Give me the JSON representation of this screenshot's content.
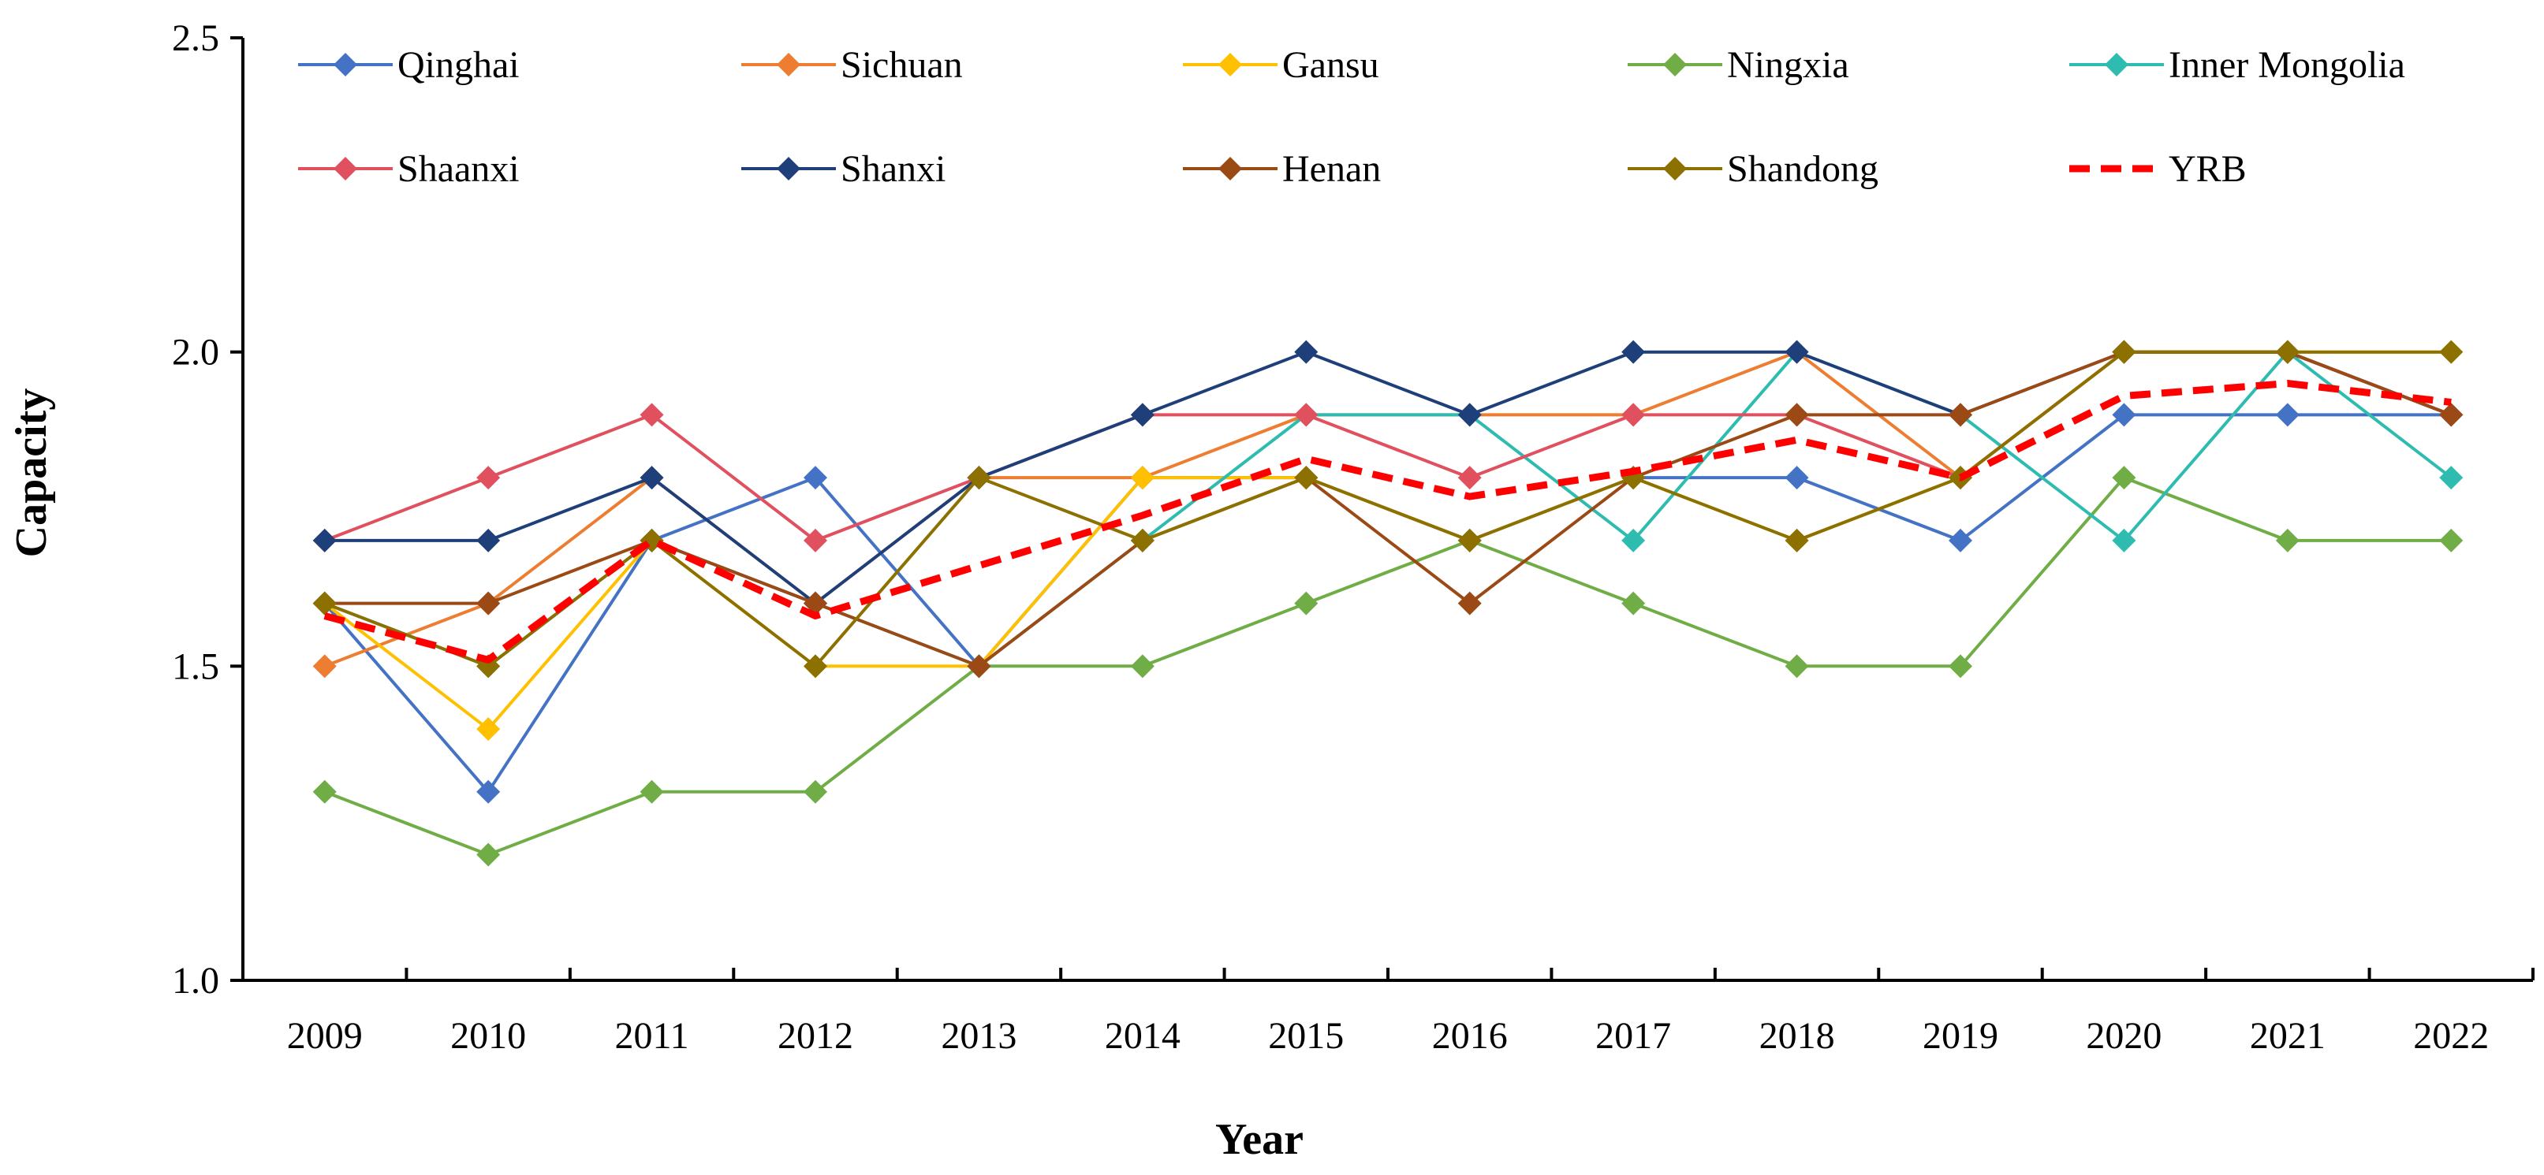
{
  "chart_data": {
    "type": "line",
    "title": "",
    "xlabel": "Year",
    "ylabel": "Capacity",
    "ylim": [
      1.0,
      2.5
    ],
    "yticks": [
      "1.0",
      "1.5",
      "2.0",
      "2.5"
    ],
    "grid": false,
    "legend_position": "top",
    "categories": [
      "2009",
      "2010",
      "2011",
      "2012",
      "2013",
      "2014",
      "2015",
      "2016",
      "2017",
      "2018",
      "2019",
      "2020",
      "2021",
      "2022"
    ],
    "series": [
      {
        "name": "Qinghai",
        "color": "#4472C4",
        "style": "solid",
        "marker": "diamond",
        "values": [
          1.6,
          1.3,
          1.7,
          1.8,
          1.5,
          1.8,
          1.8,
          1.7,
          1.8,
          1.8,
          1.7,
          1.9,
          1.9,
          1.9
        ]
      },
      {
        "name": "Sichuan",
        "color": "#ED7D31",
        "style": "solid",
        "marker": "diamond",
        "values": [
          1.5,
          1.6,
          1.8,
          1.6,
          1.8,
          1.8,
          1.9,
          1.9,
          1.9,
          2.0,
          1.8,
          2.0,
          2.0,
          1.9
        ]
      },
      {
        "name": "Gansu",
        "color": "#FFC000",
        "style": "solid",
        "marker": "diamond",
        "values": [
          1.6,
          1.4,
          1.7,
          1.5,
          1.5,
          1.8,
          1.8,
          1.7,
          1.8,
          1.7,
          1.8,
          2.0,
          2.0,
          2.0
        ]
      },
      {
        "name": "Ningxia",
        "color": "#70AD47",
        "style": "solid",
        "marker": "diamond",
        "values": [
          1.3,
          1.2,
          1.3,
          1.3,
          1.5,
          1.5,
          1.6,
          1.7,
          1.6,
          1.5,
          1.5,
          1.8,
          1.7,
          1.7
        ]
      },
      {
        "name": "Inner Mongolia",
        "color": "#2EBCB0",
        "style": "solid",
        "marker": "diamond",
        "values": [
          1.6,
          1.5,
          1.7,
          1.6,
          1.5,
          1.7,
          1.9,
          1.9,
          1.7,
          2.0,
          1.9,
          1.7,
          2.0,
          1.8
        ]
      },
      {
        "name": "Shaanxi",
        "color": "#E0505F",
        "style": "solid",
        "marker": "diamond",
        "values": [
          1.7,
          1.8,
          1.9,
          1.7,
          1.8,
          1.9,
          1.9,
          1.8,
          1.9,
          1.9,
          1.8,
          2.0,
          2.0,
          1.9
        ]
      },
      {
        "name": "Shanxi",
        "color": "#1F3F7A",
        "style": "solid",
        "marker": "diamond",
        "values": [
          1.7,
          1.7,
          1.8,
          1.6,
          1.8,
          1.9,
          2.0,
          1.9,
          2.0,
          2.0,
          1.9,
          2.0,
          2.0,
          1.9
        ]
      },
      {
        "name": "Henan",
        "color": "#9C4A15",
        "style": "solid",
        "marker": "diamond",
        "values": [
          1.6,
          1.6,
          1.7,
          1.6,
          1.5,
          1.7,
          1.8,
          1.6,
          1.8,
          1.9,
          1.9,
          2.0,
          2.0,
          1.9
        ]
      },
      {
        "name": "Shandong",
        "color": "#8C7000",
        "style": "solid",
        "marker": "diamond",
        "values": [
          1.6,
          1.5,
          1.7,
          1.5,
          1.8,
          1.7,
          1.8,
          1.7,
          1.8,
          1.7,
          1.8,
          2.0,
          2.0,
          2.0
        ]
      },
      {
        "name": "YRB",
        "color": "#FF0000",
        "style": "dashed",
        "marker": "none",
        "values": [
          1.58,
          1.51,
          1.7,
          1.58,
          1.66,
          1.74,
          1.83,
          1.77,
          1.81,
          1.86,
          1.8,
          1.93,
          1.95,
          1.92
        ]
      }
    ]
  }
}
